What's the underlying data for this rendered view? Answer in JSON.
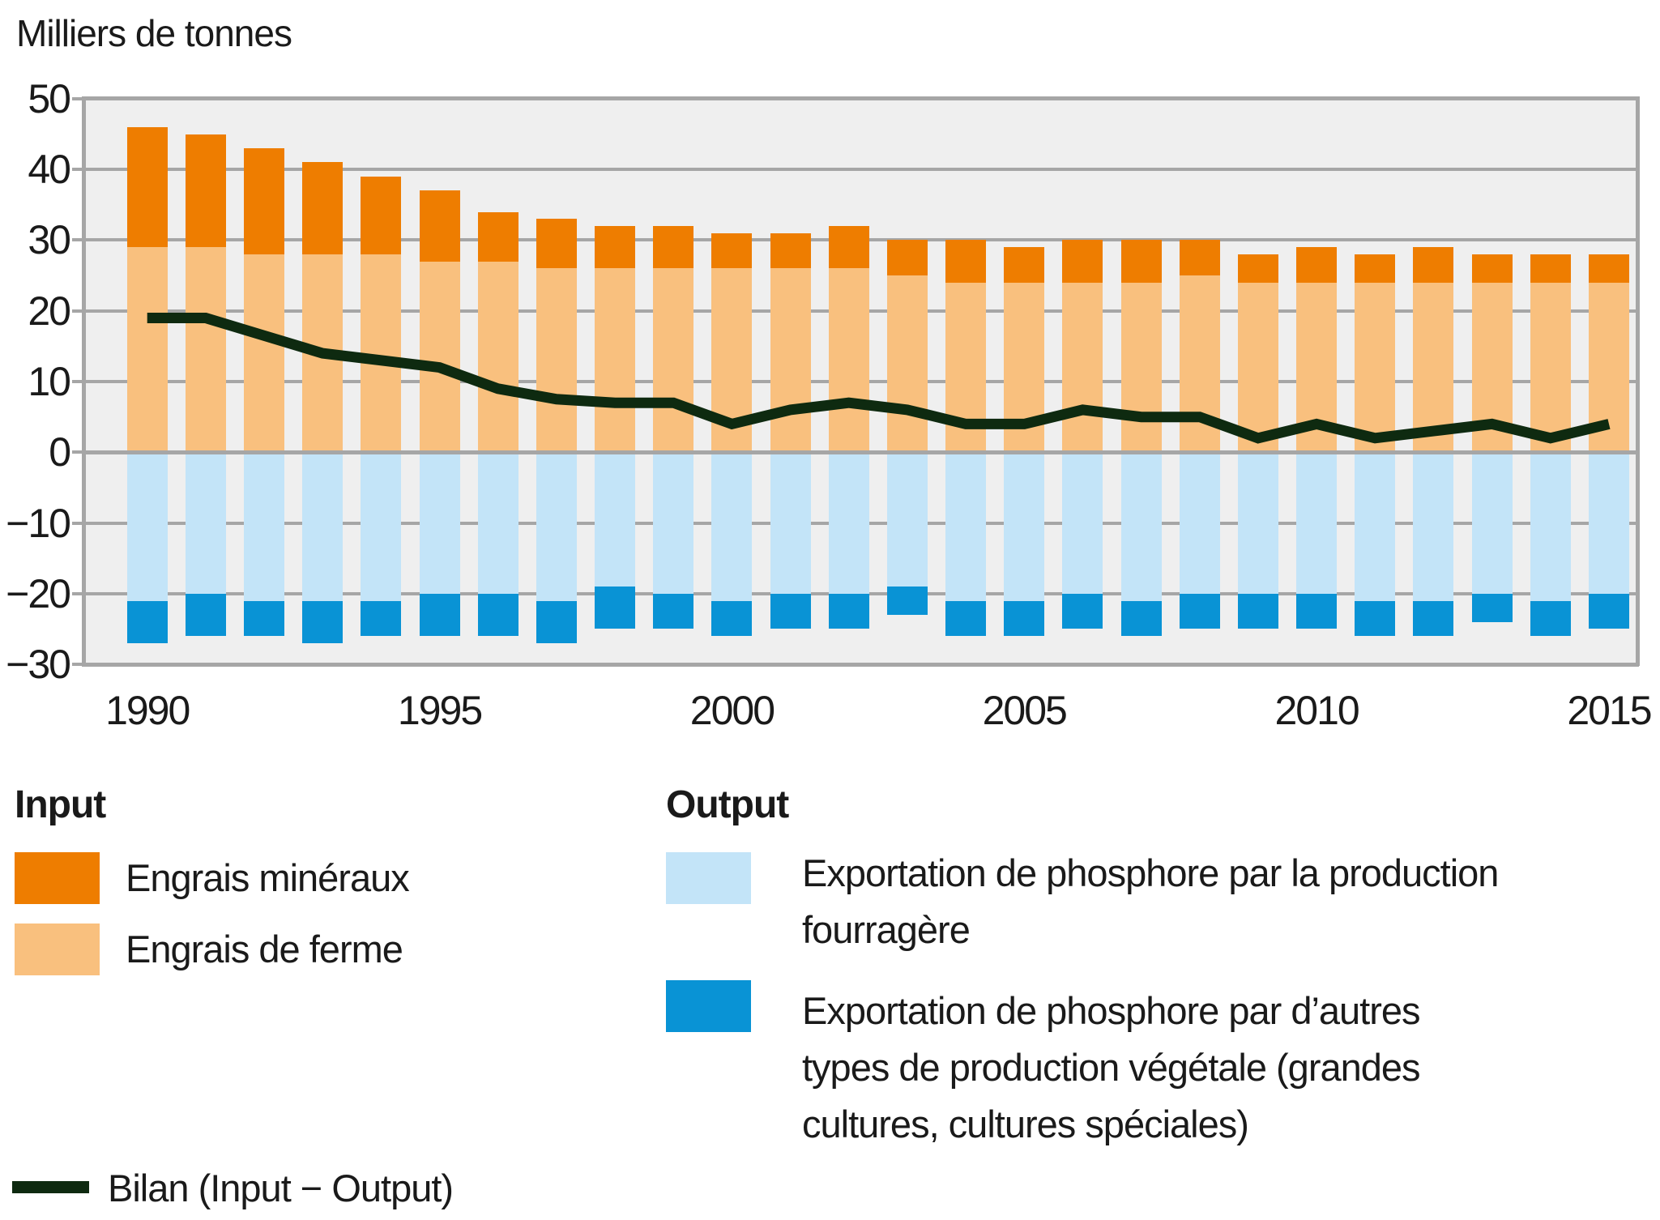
{
  "title": "Milliers de tonnes",
  "y_axis": {
    "tick_labels": [
      "50",
      "40",
      "30",
      "20",
      "10",
      "0",
      "−10",
      "−20",
      "−30"
    ],
    "tick_values": [
      50,
      40,
      30,
      20,
      10,
      0,
      -10,
      -20,
      -30
    ]
  },
  "x_axis": {
    "tick_labels": [
      "1990",
      "1995",
      "2000",
      "2005",
      "2010",
      "2015"
    ],
    "tick_values": [
      1990,
      1995,
      2000,
      2005,
      2010,
      2015
    ]
  },
  "legend": {
    "input_title": "Input",
    "output_title": "Output",
    "mineraux_label": "Engrais minéraux",
    "ferme_label": "Engrais de ferme",
    "fourragere_label": [
      "Exportation de phosphore par la production",
      "fourragère"
    ],
    "autres_label": [
      "Exportation de phosphore par d’autres",
      "types de production végétale (grandes",
      "cultures, cultures spéciales)"
    ],
    "bilan_label": "Bilan (Input − Output)"
  },
  "colors": {
    "mineraux": "#ee7d00",
    "ferme": "#f9c07e",
    "fourragere": "#c3e4f8",
    "autres": "#0993d5",
    "bilan": "#0e2a10",
    "grid": "#a6a6a6",
    "plot_bg": "#efefef",
    "text": "#1a1a1a"
  },
  "chart_data": {
    "type": "bar",
    "subtype": "stacked-bars-with-line",
    "title": "Milliers de tonnes",
    "ylabel": "Milliers de tonnes",
    "ylim": [
      -30,
      50
    ],
    "grid": true,
    "legend_position": "bottom",
    "x": [
      1990,
      1991,
      1992,
      1993,
      1994,
      1995,
      1996,
      1997,
      1998,
      1999,
      2000,
      2001,
      2002,
      2003,
      2004,
      2005,
      2006,
      2007,
      2008,
      2009,
      2010,
      2011,
      2012,
      2013,
      2014,
      2015
    ],
    "series": [
      {
        "name": "Engrais minéraux",
        "group": "Input",
        "type": "bar",
        "color": "#ee7d00",
        "values": [
          17,
          16,
          15,
          13,
          11,
          10,
          7,
          7,
          6,
          6,
          5,
          5,
          6,
          5,
          6,
          5,
          6,
          6,
          5,
          4,
          5,
          4,
          5,
          4,
          4,
          4
        ]
      },
      {
        "name": "Engrais de ferme",
        "group": "Input",
        "type": "bar",
        "color": "#f9c07e",
        "values": [
          29,
          29,
          28,
          28,
          28,
          27,
          27,
          26,
          26,
          26,
          26,
          26,
          26,
          25,
          24,
          24,
          24,
          24,
          25,
          24,
          24,
          24,
          24,
          24,
          24,
          24
        ]
      },
      {
        "name": "Exportation de phosphore par la production fourragère",
        "group": "Output",
        "type": "bar",
        "color": "#c3e4f8",
        "values": [
          -21,
          -20,
          -21,
          -21,
          -21,
          -20,
          -20,
          -21,
          -19,
          -20,
          -21,
          -20,
          -20,
          -19,
          -21,
          -21,
          -20,
          -21,
          -20,
          -20,
          -20,
          -21,
          -21,
          -20,
          -21,
          -20
        ]
      },
      {
        "name": "Exportation de phosphore par d’autres types de production végétale (grandes cultures, cultures spéciales)",
        "group": "Output",
        "type": "bar",
        "color": "#0993d5",
        "values": [
          -6,
          -6,
          -5,
          -6,
          -5,
          -6,
          -6,
          -6,
          -6,
          -5,
          -5,
          -5,
          -5,
          -4,
          -5,
          -5,
          -5,
          -5,
          -5,
          -5,
          -5,
          -5,
          -5,
          -4,
          -5,
          -5
        ]
      },
      {
        "name": "Bilan (Input − Output)",
        "type": "line",
        "color": "#0e2a10",
        "values": [
          19,
          19,
          16.5,
          14,
          13,
          12,
          9,
          7.5,
          7,
          7,
          4,
          6,
          7,
          6,
          4,
          4,
          6,
          5,
          5,
          2,
          4,
          2,
          3,
          4,
          2,
          4
        ]
      }
    ]
  }
}
